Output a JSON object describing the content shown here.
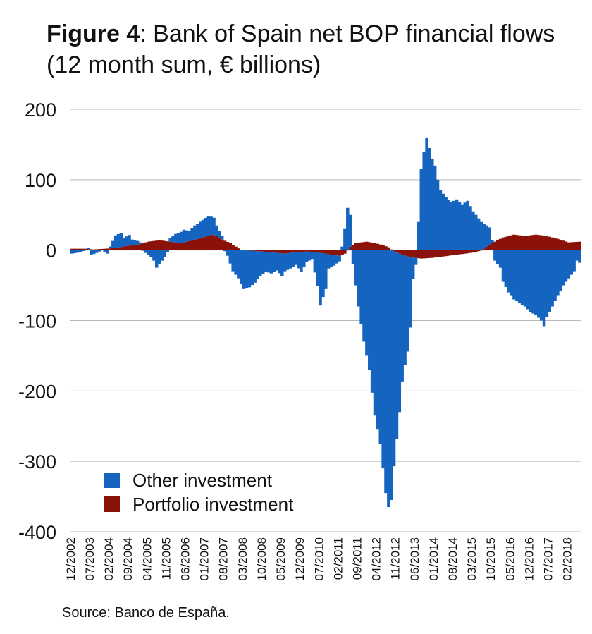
{
  "chart_data": {
    "type": "bar",
    "stacked": true,
    "title_bold": "Figure 4",
    "title_rest": ": Bank of Spain net BOP financial flows",
    "subtitle": "(12 month sum, € billions)",
    "ylim": [
      -400,
      200
    ],
    "yticks": [
      200,
      100,
      0,
      -100,
      -200,
      -300,
      -400
    ],
    "ytick_labels": [
      "200",
      "100",
      "0",
      "-100",
      "-200",
      "-300",
      "-400"
    ],
    "xtick_labels": [
      "12/2002",
      "07/2003",
      "02/2004",
      "09/2004",
      "04/2005",
      "11/2005",
      "06/2006",
      "01/2007",
      "08/2007",
      "03/2008",
      "10/2008",
      "05/2009",
      "12/2009",
      "07/2010",
      "02/2011",
      "09/2011",
      "04/2012",
      "11/2012",
      "06/2013",
      "01/2014",
      "08/2014",
      "03/2015",
      "10/2015",
      "05/2016",
      "12/2016",
      "07/2017",
      "02/2018"
    ],
    "grid": true,
    "legend_position": "bottom-left",
    "series": [
      {
        "name": "Other investment",
        "color": "#1565c0",
        "anchors": [
          [
            0,
            -5
          ],
          [
            3,
            -3
          ],
          [
            6,
            2
          ],
          [
            7,
            -7
          ],
          [
            9,
            -4
          ],
          [
            11,
            0
          ],
          [
            13,
            -5
          ],
          [
            16,
            18
          ],
          [
            18,
            20
          ],
          [
            19,
            12
          ],
          [
            21,
            15
          ],
          [
            22,
            8
          ],
          [
            24,
            5
          ],
          [
            27,
            -4
          ],
          [
            29,
            -10
          ],
          [
            30,
            -15
          ],
          [
            31,
            -25
          ],
          [
            32,
            -20
          ],
          [
            34,
            -10
          ],
          [
            36,
            5
          ],
          [
            38,
            12
          ],
          [
            41,
            18
          ],
          [
            43,
            14
          ],
          [
            45,
            20
          ],
          [
            48,
            25
          ],
          [
            50,
            28
          ],
          [
            52,
            25
          ],
          [
            53,
            15
          ],
          [
            55,
            5
          ],
          [
            57,
            -8
          ],
          [
            59,
            -30
          ],
          [
            61,
            -40
          ],
          [
            63,
            -55
          ],
          [
            65,
            -52
          ],
          [
            67,
            -45
          ],
          [
            69,
            -35
          ],
          [
            71,
            -28
          ],
          [
            73,
            -30
          ],
          [
            75,
            -25
          ],
          [
            77,
            -32
          ],
          [
            78,
            -25
          ],
          [
            80,
            -22
          ],
          [
            82,
            -18
          ],
          [
            84,
            -28
          ],
          [
            86,
            -15
          ],
          [
            88,
            -10
          ],
          [
            90,
            -48
          ],
          [
            91,
            -75
          ],
          [
            92,
            -62
          ],
          [
            93,
            -50
          ],
          [
            94,
            -20
          ],
          [
            96,
            -15
          ],
          [
            98,
            -8
          ],
          [
            99,
            5
          ],
          [
            100,
            30
          ],
          [
            101,
            60
          ],
          [
            102,
            45
          ],
          [
            103,
            -20
          ],
          [
            105,
            -80
          ],
          [
            107,
            -130
          ],
          [
            109,
            -170
          ],
          [
            111,
            -235
          ],
          [
            113,
            -275
          ],
          [
            115,
            -345
          ],
          [
            116,
            -365
          ],
          [
            117,
            -355
          ],
          [
            118,
            -305
          ],
          [
            119,
            -265
          ],
          [
            120,
            -225
          ],
          [
            121,
            -180
          ],
          [
            122,
            -155
          ],
          [
            123,
            -135
          ],
          [
            124,
            -100
          ],
          [
            125,
            -30
          ],
          [
            126,
            -10
          ],
          [
            127,
            40
          ],
          [
            128,
            115
          ],
          [
            129,
            140
          ],
          [
            130,
            160
          ],
          [
            131,
            145
          ],
          [
            132,
            130
          ],
          [
            133,
            120
          ],
          [
            134,
            100
          ],
          [
            135,
            85
          ],
          [
            137,
            75
          ],
          [
            139,
            68
          ],
          [
            141,
            72
          ],
          [
            143,
            65
          ],
          [
            145,
            70
          ],
          [
            147,
            55
          ],
          [
            149,
            45
          ],
          [
            151,
            35
          ],
          [
            153,
            25
          ],
          [
            154,
            5
          ],
          [
            155,
            -15
          ],
          [
            157,
            -25
          ],
          [
            158,
            -45
          ],
          [
            160,
            -60
          ],
          [
            162,
            -70
          ],
          [
            164,
            -75
          ],
          [
            166,
            -80
          ],
          [
            168,
            -88
          ],
          [
            170,
            -92
          ],
          [
            172,
            -100
          ],
          [
            173,
            -108
          ],
          [
            174,
            -95
          ],
          [
            176,
            -80
          ],
          [
            178,
            -65
          ],
          [
            180,
            -50
          ],
          [
            182,
            -40
          ],
          [
            184,
            -30
          ],
          [
            185,
            -15
          ],
          [
            186,
            -18
          ]
        ]
      },
      {
        "name": "Portfolio investment",
        "color": "#8b1208",
        "anchors": [
          [
            0,
            2
          ],
          [
            4,
            2
          ],
          [
            8,
            1
          ],
          [
            12,
            2
          ],
          [
            16,
            3
          ],
          [
            20,
            6
          ],
          [
            24,
            8
          ],
          [
            28,
            12
          ],
          [
            32,
            14
          ],
          [
            36,
            12
          ],
          [
            40,
            10
          ],
          [
            44,
            14
          ],
          [
            48,
            18
          ],
          [
            51,
            22
          ],
          [
            53,
            20
          ],
          [
            55,
            15
          ],
          [
            58,
            10
          ],
          [
            60,
            5
          ],
          [
            62,
            0
          ],
          [
            70,
            -2
          ],
          [
            78,
            -5
          ],
          [
            82,
            -3
          ],
          [
            86,
            -2
          ],
          [
            90,
            -3
          ],
          [
            94,
            -6
          ],
          [
            98,
            -8
          ],
          [
            100,
            -5
          ],
          [
            102,
            5
          ],
          [
            104,
            10
          ],
          [
            108,
            12
          ],
          [
            111,
            10
          ],
          [
            114,
            7
          ],
          [
            116,
            4
          ],
          [
            118,
            -2
          ],
          [
            120,
            -5
          ],
          [
            122,
            -8
          ],
          [
            124,
            -10
          ],
          [
            128,
            -12
          ],
          [
            132,
            -11
          ],
          [
            138,
            -8
          ],
          [
            144,
            -5
          ],
          [
            148,
            -3
          ],
          [
            150,
            0
          ],
          [
            152,
            5
          ],
          [
            155,
            12
          ],
          [
            158,
            18
          ],
          [
            162,
            22
          ],
          [
            166,
            20
          ],
          [
            170,
            22
          ],
          [
            174,
            20
          ],
          [
            178,
            16
          ],
          [
            182,
            11
          ],
          [
            186,
            12
          ]
        ]
      }
    ]
  },
  "source": "Source: Banco de España."
}
